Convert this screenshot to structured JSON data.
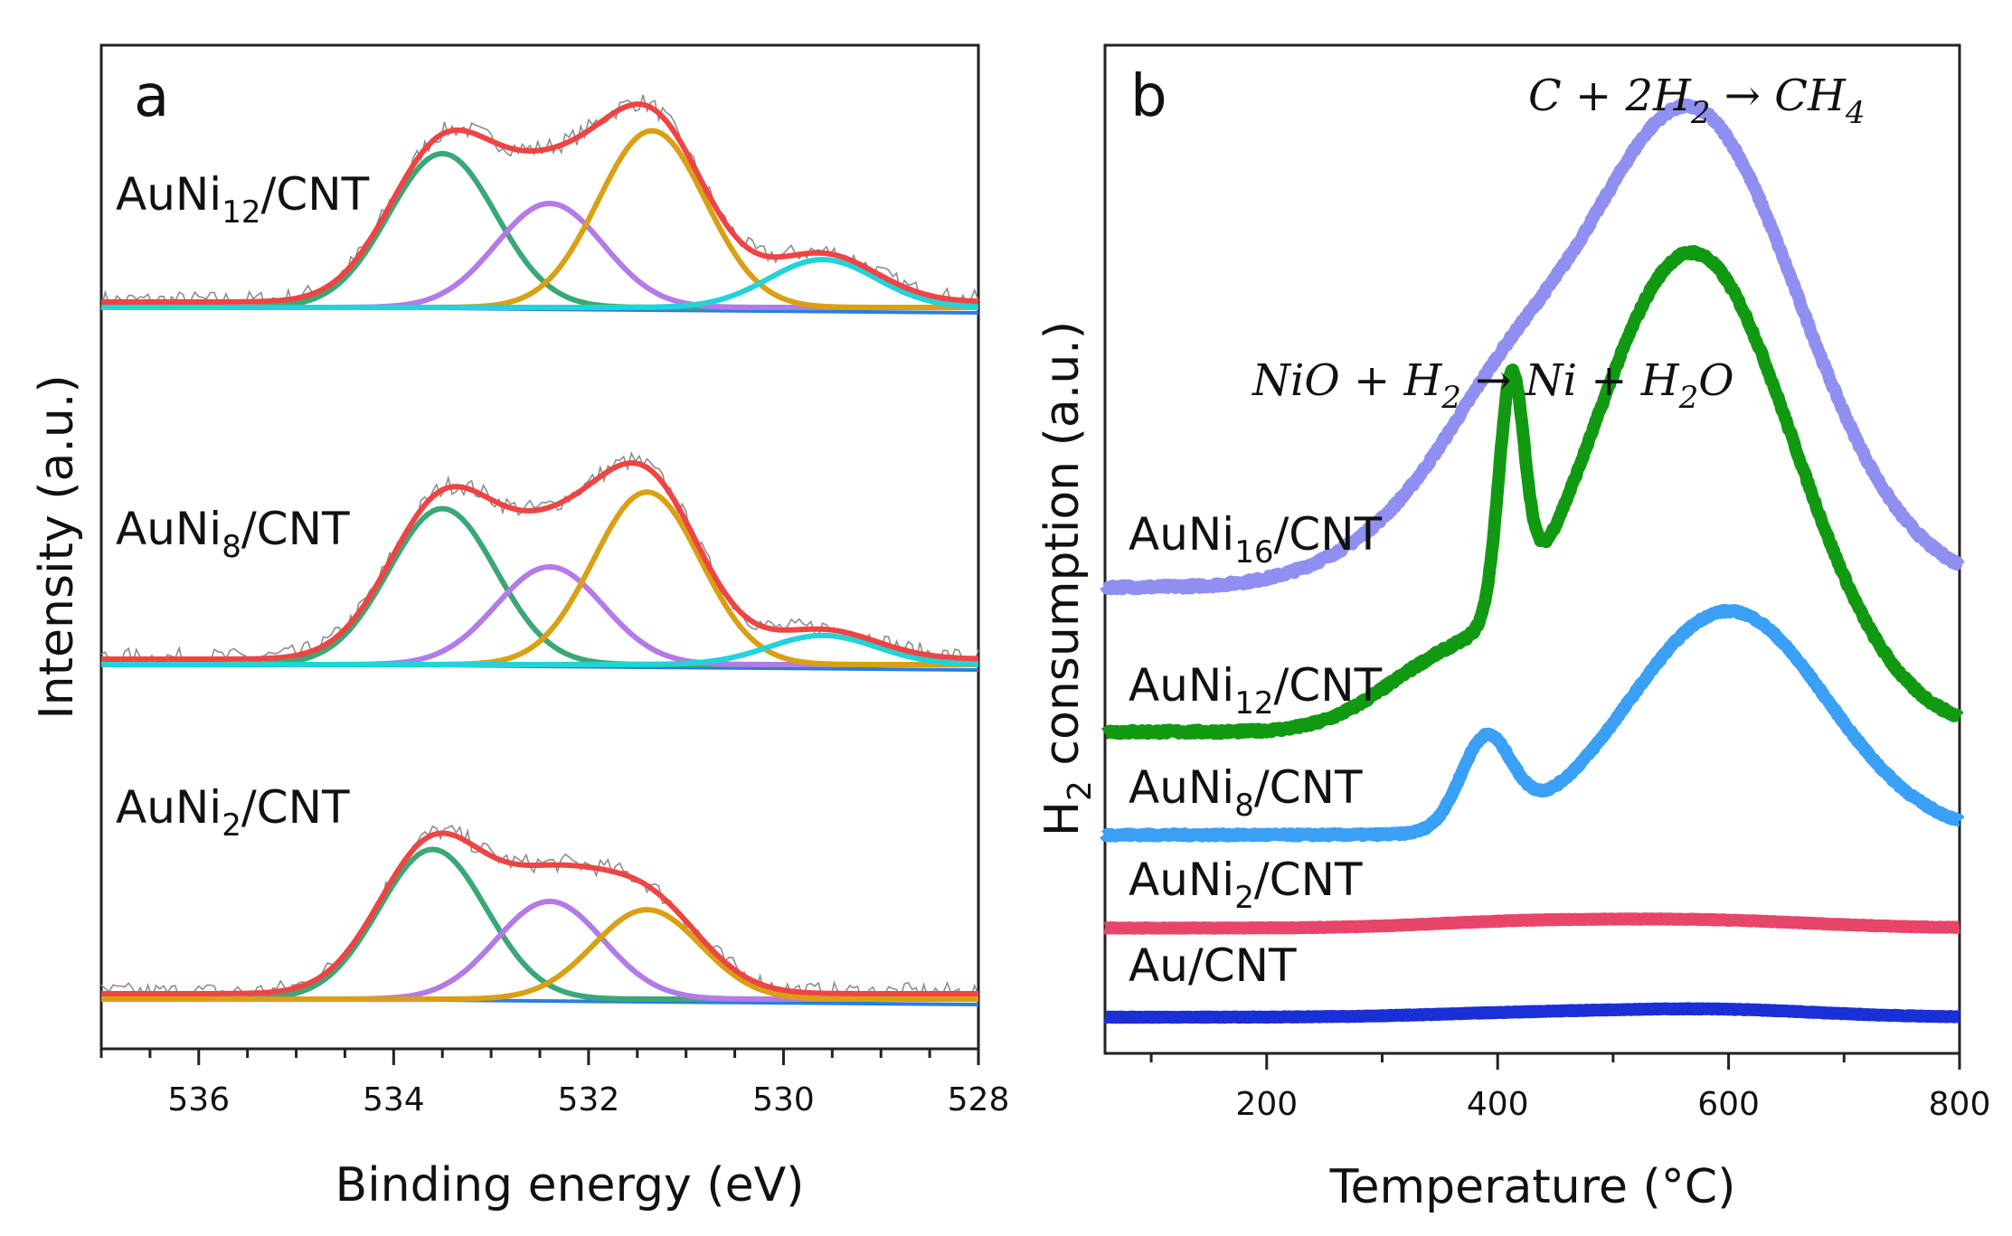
{
  "chart_data": [
    {
      "type": "line",
      "panel_label": "a",
      "xlabel": "Binding energy (eV)",
      "ylabel": "Intensity (a.u.)",
      "xlim": [
        537,
        528
      ],
      "x_ticks": [
        "536",
        "534",
        "532",
        "530",
        "528"
      ],
      "colors": {
        "raw": "#8c8c8c",
        "envelope": "#ef4444",
        "peak_533_5": "#3aa876",
        "peak_532_4": "#b37ae8",
        "peak_531_4": "#d9a014",
        "peak_529_6": "#22d3d9",
        "baseline": "#2b7de0"
      },
      "series": [
        {
          "name": "AuNi12/CNT",
          "label_main": "AuNi",
          "label_sub": "12",
          "label_tail": "/CNT",
          "peaks": [
            {
              "center": 533.5,
              "height": 0.74
            },
            {
              "center": 532.4,
              "height": 0.5
            },
            {
              "center": 531.35,
              "height": 0.85
            },
            {
              "center": 529.6,
              "height": 0.23
            }
          ]
        },
        {
          "name": "AuNi8/CNT",
          "label_main": "AuNi",
          "label_sub": "8",
          "label_tail": "/CNT",
          "peaks": [
            {
              "center": 533.5,
              "height": 0.75
            },
            {
              "center": 532.4,
              "height": 0.47
            },
            {
              "center": 531.4,
              "height": 0.83
            },
            {
              "center": 529.6,
              "height": 0.14
            }
          ]
        },
        {
          "name": "AuNi2/CNT",
          "label_main": "AuNi",
          "label_sub": "2",
          "label_tail": "/CNT",
          "peaks": [
            {
              "center": 533.6,
              "height": 0.72
            },
            {
              "center": 532.4,
              "height": 0.47
            },
            {
              "center": 531.4,
              "height": 0.43
            }
          ]
        }
      ]
    },
    {
      "type": "line",
      "panel_label": "b",
      "xlabel_main": "Temperature (",
      "xlabel_unit": "°C)",
      "ylabel_main": "H",
      "ylabel_sub": "2",
      "ylabel_tail": " consumption (a.u.)",
      "xlim": [
        60,
        800
      ],
      "x_ticks": [
        200,
        400,
        600,
        800
      ],
      "annotations": [
        {
          "text": "C + 2H",
          "sub": "2",
          "tail": " → CH",
          "sub2": "4"
        },
        {
          "text": "NiO + H",
          "sub": "2",
          "tail": " → Ni + H",
          "sub2": "2",
          "tail2": "O"
        }
      ],
      "series": [
        {
          "name": "AuNi16/CNT",
          "label_main": "AuNi",
          "label_sub": "16",
          "label_tail": "/CNT",
          "color": "#8f8ff2",
          "baseline": 0.02,
          "components": [
            {
              "center": 330,
              "height": 0.1,
              "width": 70
            },
            {
              "center": 405,
              "height": 0.2,
              "width": 55
            },
            {
              "center": 565,
              "height": 1.0,
              "width": 95
            }
          ]
        },
        {
          "name": "AuNi12/CNT",
          "label_main": "AuNi",
          "label_sub": "12",
          "label_tail": "/CNT",
          "color": "#129912",
          "baseline": 0.02,
          "components": [
            {
              "center": 350,
              "height": 0.12,
              "width": 55
            },
            {
              "center": 412,
              "height": 0.48,
              "width": 11
            },
            {
              "center": 568,
              "height": 1.0,
              "width": 88
            }
          ]
        },
        {
          "name": "AuNi8/CNT",
          "label_main": "AuNi",
          "label_sub": "8",
          "label_tail": "/CNT",
          "color": "#3aa0f5",
          "baseline": 0.02,
          "components": [
            {
              "center": 390,
              "height": 0.3,
              "width": 22
            },
            {
              "center": 600,
              "height": 0.75,
              "width": 85
            }
          ]
        },
        {
          "name": "AuNi2/CNT",
          "label_main": "AuNi",
          "label_sub": "2",
          "label_tail": "/CNT",
          "color": "#e8456a",
          "baseline": 0.02,
          "components": [
            {
              "center": 410,
              "height": 0.07,
              "width": 80
            },
            {
              "center": 570,
              "height": 0.11,
              "width": 100
            }
          ]
        },
        {
          "name": "Au/CNT",
          "label_main": "Au/CNT",
          "label_sub": "",
          "label_tail": "",
          "color": "#1a2fd6",
          "baseline": 0.0,
          "components": [
            {
              "center": 430,
              "height": 0.05,
              "width": 90
            },
            {
              "center": 590,
              "height": 0.09,
              "width": 90
            }
          ]
        }
      ]
    }
  ]
}
